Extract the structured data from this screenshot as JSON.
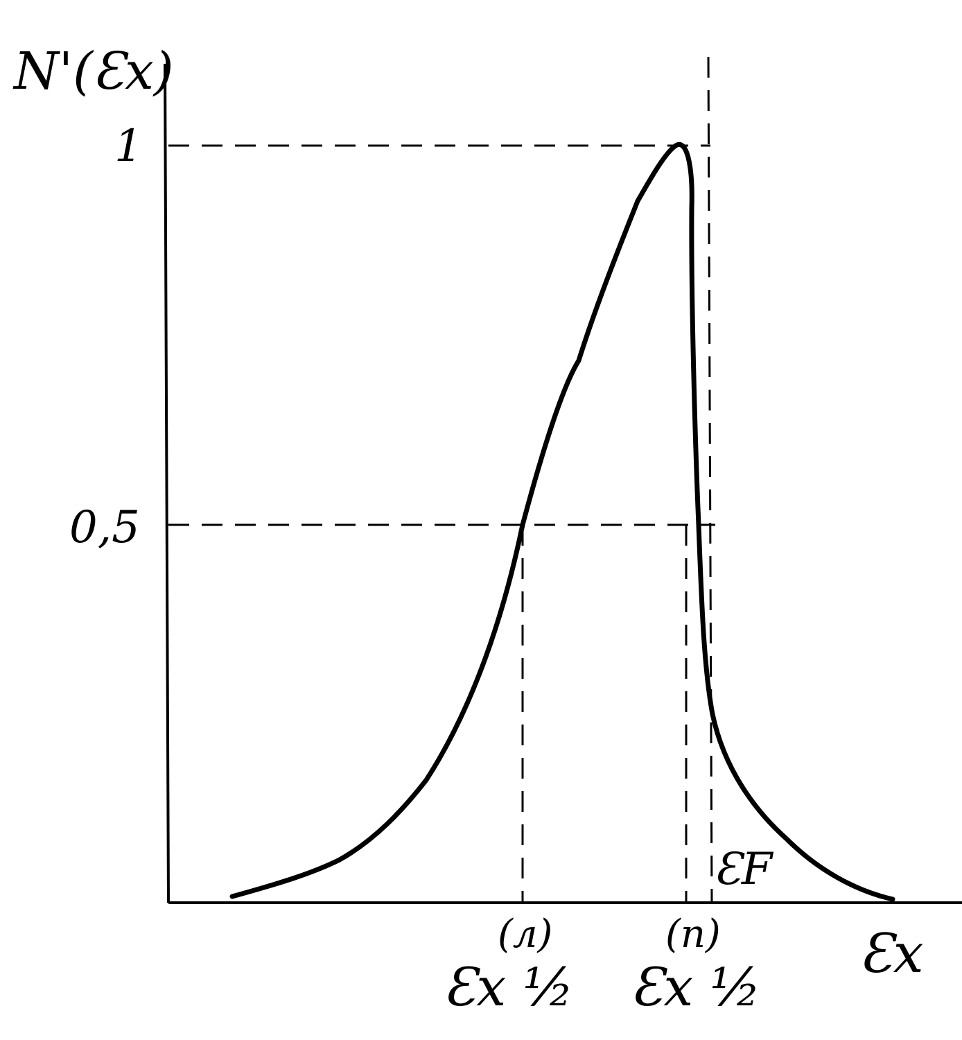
{
  "diagram": {
    "y_axis_label": "N'(Ɛx)",
    "x_axis_label": "Ɛx",
    "y_tick_1": "1",
    "y_tick_half": "0,5",
    "fermi_label": "ƐF",
    "marker_left_tag": "(л)",
    "marker_left_label": "Ɛx ½",
    "marker_right_tag": "(п)",
    "marker_right_label": "Ɛx ½",
    "line_color": "#000000"
  }
}
